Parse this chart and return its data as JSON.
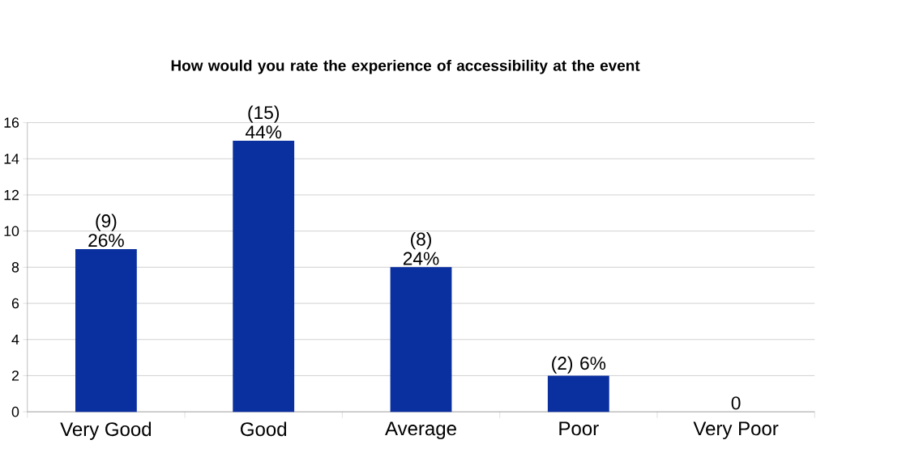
{
  "chart_data": {
    "type": "bar",
    "title": "How would you rate the experience of accessibility at the event",
    "categories": [
      "Very Good",
      "Good",
      "Average",
      "Poor",
      "Very Poor"
    ],
    "values": [
      9,
      15,
      8,
      2,
      0
    ],
    "value_labels": [
      "(9) 26%",
      "(15) 44%",
      "(8) 24%",
      "(2) 6%",
      "0"
    ],
    "color": "#0a2f9e",
    "ylim": [
      0,
      16
    ],
    "yticks": [
      0,
      2,
      4,
      6,
      8,
      10,
      12,
      14,
      16
    ],
    "grid": "y"
  }
}
